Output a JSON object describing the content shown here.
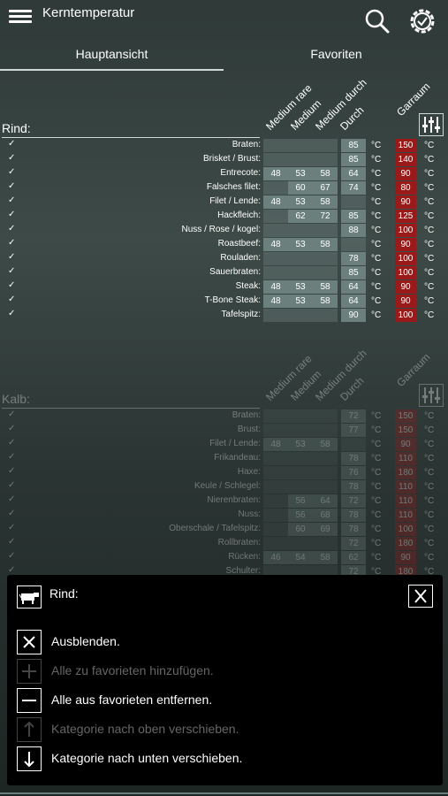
{
  "app": {
    "title": "Kerntemperatur"
  },
  "tabs": [
    {
      "label": "Hauptansicht"
    },
    {
      "label": "Favoriten"
    }
  ],
  "columns": [
    "Medium rare",
    "Medium",
    "Medium durch",
    "Durch"
  ],
  "garraum_label": "Garraum",
  "unit": "°C",
  "rind": {
    "title": "Rind:",
    "rows": [
      {
        "name": "Braten:",
        "values": [
          "",
          "",
          "",
          "85"
        ],
        "temp": "150"
      },
      {
        "name": "Brisket / Brust:",
        "values": [
          "",
          "",
          "",
          "85"
        ],
        "temp": "140"
      },
      {
        "name": "Entrecote:",
        "values": [
          "48",
          "53",
          "58",
          "64"
        ],
        "temp": "90"
      },
      {
        "name": "Falsches filet:",
        "values": [
          "",
          "60",
          "67",
          "74"
        ],
        "temp": "80"
      },
      {
        "name": "Filet / Lende:",
        "values": [
          "48",
          "53",
          "58",
          ""
        ],
        "temp": "90"
      },
      {
        "name": "Hackfleich:",
        "values": [
          "",
          "62",
          "72",
          "85"
        ],
        "temp": "125"
      },
      {
        "name": "Nuss / Rose / kogel:",
        "values": [
          "",
          "",
          "",
          "88"
        ],
        "temp": "100"
      },
      {
        "name": "Roastbeef:",
        "values": [
          "48",
          "53",
          "58",
          ""
        ],
        "temp": "90"
      },
      {
        "name": "Rouladen:",
        "values": [
          "",
          "",
          "",
          "78"
        ],
        "temp": "100"
      },
      {
        "name": "Sauerbraten:",
        "values": [
          "",
          "",
          "",
          "85"
        ],
        "temp": "100"
      },
      {
        "name": "Steak:",
        "values": [
          "48",
          "53",
          "58",
          "64"
        ],
        "temp": "90"
      },
      {
        "name": "T-Bone Steak:",
        "values": [
          "48",
          "53",
          "58",
          "64"
        ],
        "temp": "90"
      },
      {
        "name": "Tafelspitz:",
        "values": [
          "",
          "",
          "",
          "90"
        ],
        "temp": "100"
      }
    ]
  },
  "kalb": {
    "title": "Kalb:",
    "rows": [
      {
        "name": "Braten:",
        "values": [
          "",
          "",
          "",
          "72"
        ],
        "temp": "150"
      },
      {
        "name": "Brust:",
        "values": [
          "",
          "",
          "",
          "77"
        ],
        "temp": "150"
      },
      {
        "name": "Filet / Lende:",
        "values": [
          "48",
          "53",
          "58",
          ""
        ],
        "temp": "90"
      },
      {
        "name": "Frikandeau:",
        "values": [
          "",
          "",
          "",
          "78"
        ],
        "temp": "110"
      },
      {
        "name": "Haxe:",
        "values": [
          "",
          "",
          "",
          "76"
        ],
        "temp": "180"
      },
      {
        "name": "Keule / Schlegel:",
        "values": [
          "",
          "",
          "",
          "78"
        ],
        "temp": "110"
      },
      {
        "name": "Nierenbraten:",
        "values": [
          "",
          "56",
          "64",
          "72"
        ],
        "temp": "110"
      },
      {
        "name": "Nuss:",
        "values": [
          "",
          "56",
          "68",
          "78"
        ],
        "temp": "110"
      },
      {
        "name": "Oberschale / Tafelspitz:",
        "values": [
          "",
          "60",
          "69",
          "78"
        ],
        "temp": "100"
      },
      {
        "name": "Rollbraten:",
        "values": [
          "",
          "",
          "",
          "72"
        ],
        "temp": "180"
      },
      {
        "name": "Rücken:",
        "values": [
          "46",
          "54",
          "58",
          "62"
        ],
        "temp": "90"
      },
      {
        "name": "Schulter:",
        "values": [
          "",
          "",
          "",
          "72"
        ],
        "temp": "180"
      }
    ]
  },
  "sheet": {
    "title": "Rind:",
    "actions": [
      {
        "label": "Ausblenden.",
        "icon": "close-icon",
        "enabled": true
      },
      {
        "label": "Alle zu favorieten hinzufügen.",
        "icon": "plus-icon",
        "enabled": false
      },
      {
        "label": "Alle aus favorieten entfernen.",
        "icon": "minus-icon",
        "enabled": true
      },
      {
        "label": "Kategorie nach oben verschieben.",
        "icon": "arrow-up-icon",
        "enabled": false
      },
      {
        "label": "Kategorie nach unten verschieben.",
        "icon": "arrow-down-icon",
        "enabled": true
      }
    ]
  },
  "colors": {
    "accent_red": "#9a1a1a",
    "cell_fill": "#6b807d"
  }
}
